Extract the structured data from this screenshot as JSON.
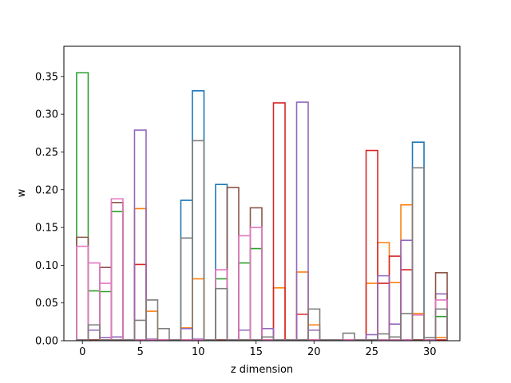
{
  "chart_data": {
    "type": "step-histogram",
    "xlabel": "z dimension",
    "ylabel": "w",
    "xlim": [
      -1.6,
      32.6
    ],
    "ylim": [
      0,
      0.39
    ],
    "xticks": [
      0,
      5,
      10,
      15,
      20,
      25,
      30
    ],
    "yticks": [
      0.0,
      0.05,
      0.1,
      0.15,
      0.2,
      0.25,
      0.3,
      0.35
    ],
    "ytick_labels": [
      "0.00",
      "0.05",
      "0.10",
      "0.15",
      "0.20",
      "0.25",
      "0.30",
      "0.35"
    ],
    "grid": false,
    "legend": "none",
    "x": [
      0,
      1,
      2,
      3,
      4,
      5,
      6,
      7,
      8,
      9,
      10,
      11,
      12,
      13,
      14,
      15,
      16,
      17,
      18,
      19,
      20,
      21,
      22,
      23,
      24,
      25,
      26,
      27,
      28,
      29,
      30,
      31
    ],
    "series": [
      {
        "color": "#1f77b4",
        "values": [
          0.001,
          0.001,
          0.001,
          0.001,
          0.001,
          0.001,
          0.001,
          0.001,
          0.001,
          0.186,
          0.331,
          0.001,
          0.207,
          0.001,
          0.001,
          0.001,
          0.001,
          0.001,
          0.001,
          0.001,
          0.001,
          0.001,
          0.001,
          0.001,
          0.001,
          0.001,
          0.001,
          0.001,
          0.001,
          0.263,
          0.001,
          0.001
        ]
      },
      {
        "color": "#ff7f0e",
        "values": [
          0.001,
          0.001,
          0.001,
          0.001,
          0.001,
          0.175,
          0.039,
          0.001,
          0.001,
          0.017,
          0.082,
          0.001,
          0.001,
          0.001,
          0.001,
          0.001,
          0.001,
          0.07,
          0.001,
          0.091,
          0.021,
          0.001,
          0.001,
          0.001,
          0.001,
          0.076,
          0.13,
          0.077,
          0.18,
          0.036,
          0.001,
          0.004
        ]
      },
      {
        "color": "#2ca02c",
        "values": [
          0.355,
          0.066,
          0.065,
          0.171,
          0.001,
          0.001,
          0.001,
          0.001,
          0.001,
          0.001,
          0.001,
          0.001,
          0.082,
          0.001,
          0.103,
          0.122,
          0.001,
          0.001,
          0.001,
          0.001,
          0.001,
          0.001,
          0.001,
          0.001,
          0.001,
          0.001,
          0.001,
          0.001,
          0.001,
          0.001,
          0.001,
          0.032
        ]
      },
      {
        "color": "#d62728",
        "values": [
          0.001,
          0.001,
          0.001,
          0.001,
          0.001,
          0.101,
          0.001,
          0.001,
          0.001,
          0.001,
          0.001,
          0.001,
          0.001,
          0.001,
          0.001,
          0.001,
          0.001,
          0.315,
          0.001,
          0.035,
          0.001,
          0.001,
          0.001,
          0.001,
          0.001,
          0.252,
          0.076,
          0.112,
          0.094,
          0.001,
          0.001,
          0.001
        ]
      },
      {
        "color": "#9467bd",
        "values": [
          0.001,
          0.014,
          0.004,
          0.005,
          0.001,
          0.279,
          0.002,
          0.001,
          0.001,
          0.016,
          0.002,
          0.001,
          0.001,
          0.001,
          0.014,
          0.001,
          0.016,
          0.001,
          0.001,
          0.316,
          0.014,
          0.001,
          0.001,
          0.001,
          0.001,
          0.008,
          0.086,
          0.022,
          0.133,
          0.001,
          0.001,
          0.062
        ]
      },
      {
        "color": "#8c564b",
        "values": [
          0.137,
          0.001,
          0.097,
          0.183,
          0.001,
          0.001,
          0.001,
          0.001,
          0.001,
          0.001,
          0.001,
          0.001,
          0.001,
          0.203,
          0.001,
          0.176,
          0.001,
          0.001,
          0.001,
          0.001,
          0.001,
          0.001,
          0.001,
          0.001,
          0.001,
          0.001,
          0.001,
          0.001,
          0.001,
          0.001,
          0.001,
          0.09
        ]
      },
      {
        "color": "#e377c2",
        "values": [
          0.125,
          0.103,
          0.076,
          0.188,
          0.001,
          0.001,
          0.001,
          0.001,
          0.001,
          0.001,
          0.001,
          0.001,
          0.094,
          0.001,
          0.139,
          0.15,
          0.001,
          0.001,
          0.001,
          0.001,
          0.001,
          0.001,
          0.001,
          0.001,
          0.001,
          0.001,
          0.001,
          0.001,
          0.001,
          0.034,
          0.001,
          0.054
        ]
      },
      {
        "color": "#7f7f7f",
        "values": [
          0.001,
          0.021,
          0.001,
          0.001,
          0.001,
          0.027,
          0.054,
          0.016,
          0.001,
          0.136,
          0.265,
          0.001,
          0.069,
          0.001,
          0.001,
          0.001,
          0.005,
          0.001,
          0.001,
          0.001,
          0.042,
          0.001,
          0.001,
          0.01,
          0.001,
          0.001,
          0.009,
          0.005,
          0.036,
          0.229,
          0.004,
          0.042
        ]
      }
    ]
  }
}
